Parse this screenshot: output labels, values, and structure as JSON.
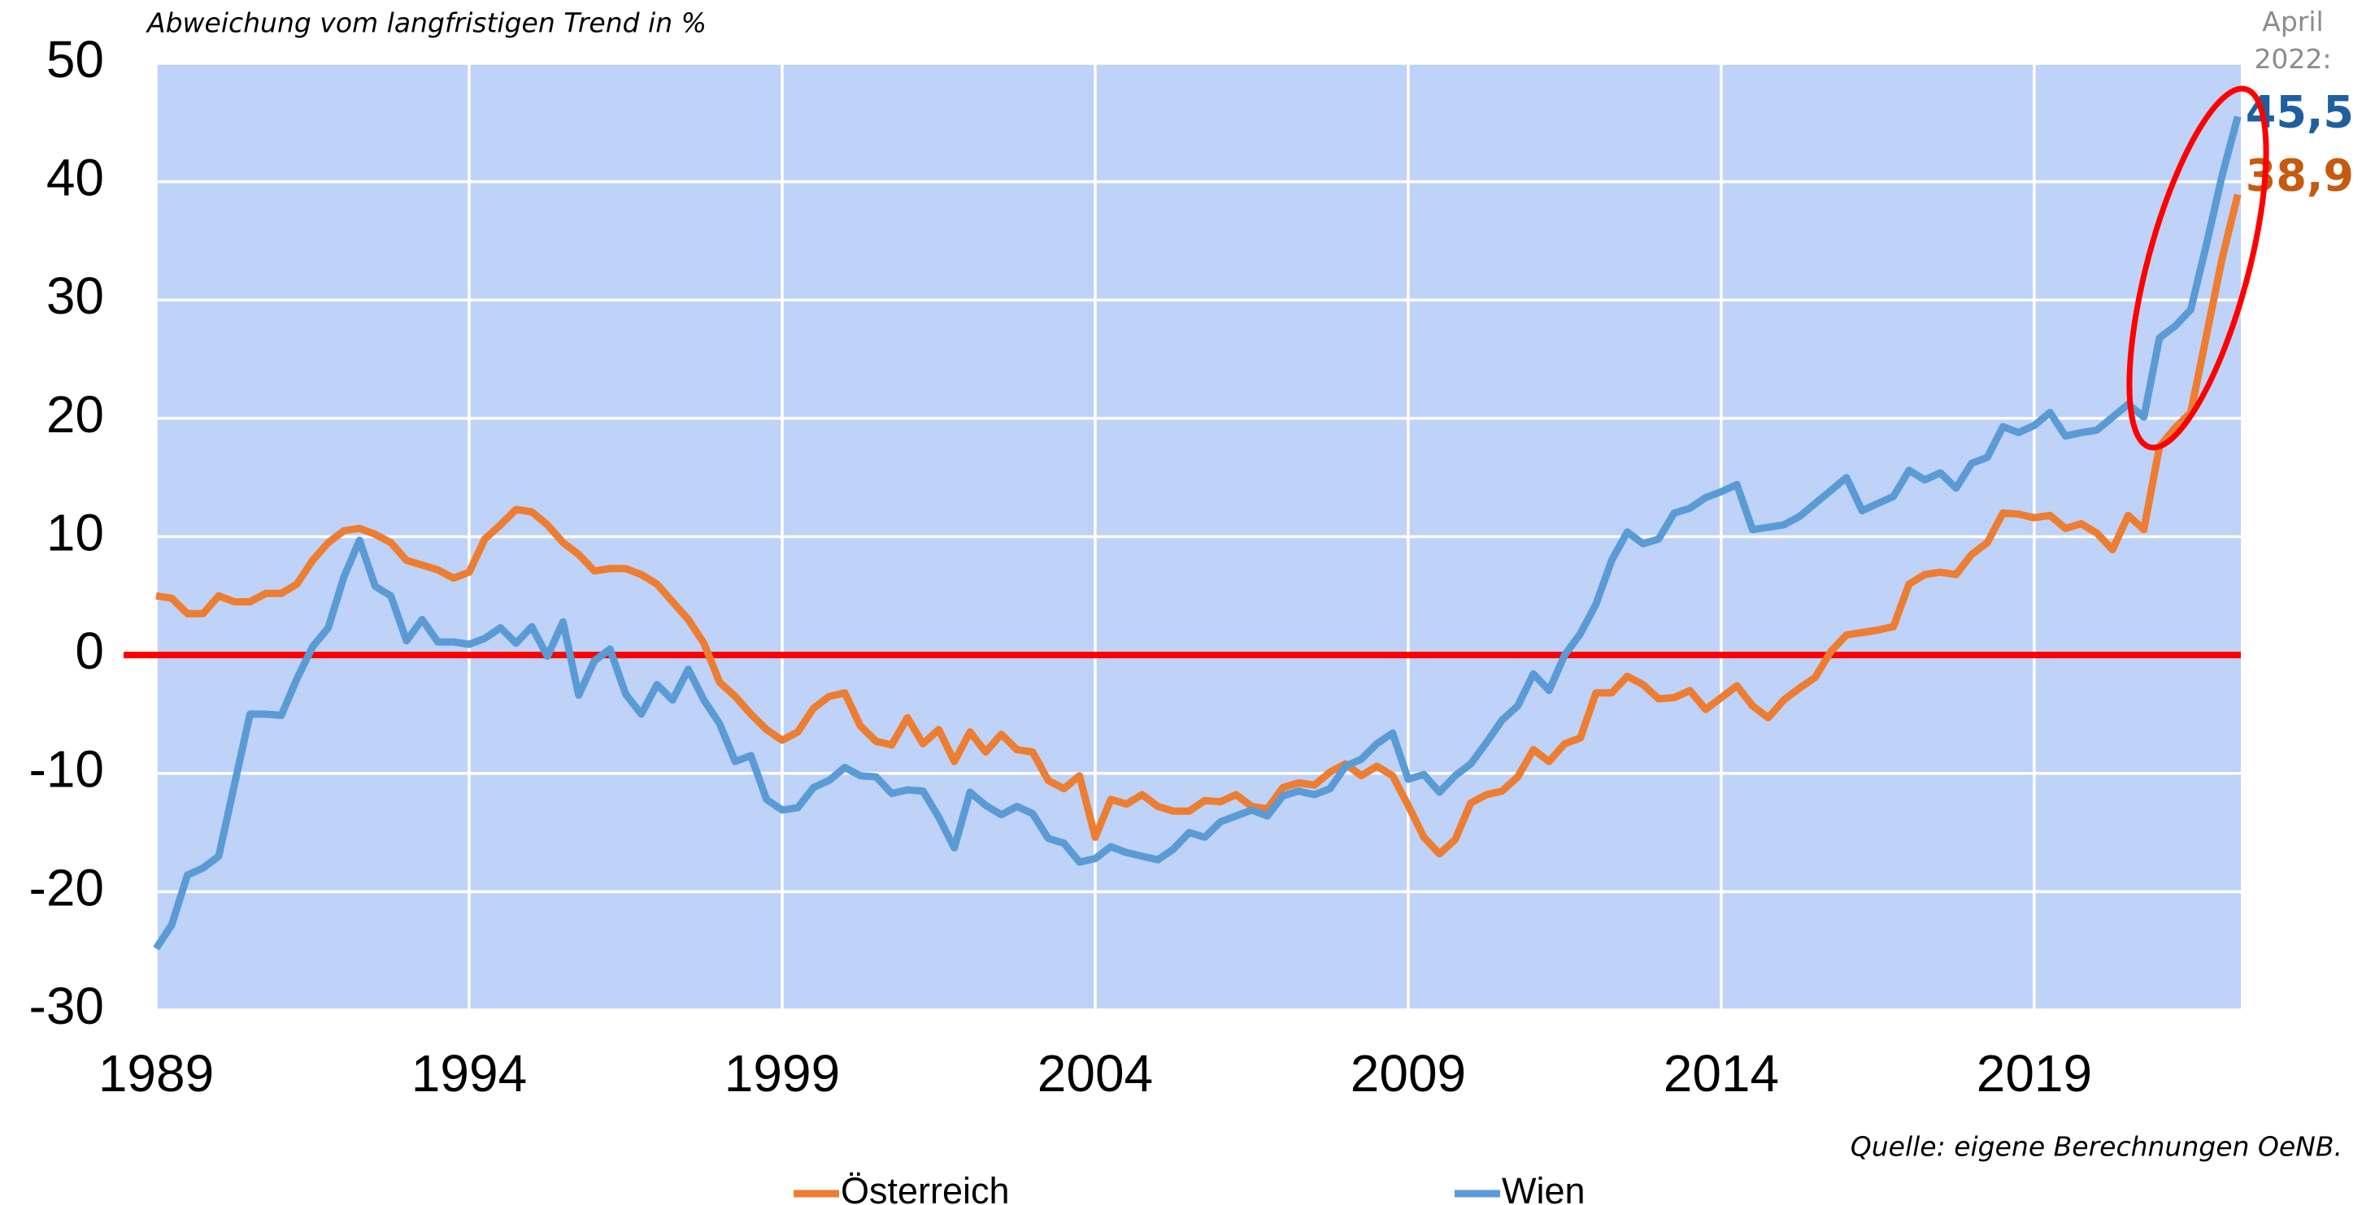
{
  "chart_data": {
    "type": "line",
    "subtitle": "Abweichung vom langfristigen Trend in %",
    "source": "Quelle: eigene Berechnungen OeNB.",
    "annotation": "April 2022:",
    "xlim": [
      1989,
      2022.3
    ],
    "xticks": [
      1989,
      1994,
      1999,
      2004,
      2009,
      2014,
      2019
    ],
    "ylim": [
      -30,
      50
    ],
    "yticks": [
      -30,
      -20,
      -10,
      0,
      10,
      20,
      30,
      40,
      50
    ],
    "grid": true,
    "plot_background": "#bfd2f7",
    "reference_line": {
      "value": 0,
      "color": "#ff0000"
    },
    "x": [
      1989,
      1989.25,
      1989.5,
      1989.75,
      1990,
      1990.25,
      1990.5,
      1990.75,
      1991,
      1991.25,
      1991.5,
      1991.75,
      1992,
      1992.25,
      1992.5,
      1992.75,
      1993,
      1993.25,
      1993.5,
      1993.75,
      1994,
      1994.25,
      1994.5,
      1994.75,
      1995,
      1995.25,
      1995.5,
      1995.75,
      1996,
      1996.25,
      1996.5,
      1996.75,
      1997,
      1997.25,
      1997.5,
      1997.75,
      1998,
      1998.25,
      1998.5,
      1998.75,
      1999,
      1999.25,
      1999.5,
      1999.75,
      2000,
      2000.25,
      2000.5,
      2000.75,
      2001,
      2001.25,
      2001.5,
      2001.75,
      2002,
      2002.25,
      2002.5,
      2002.75,
      2003,
      2003.25,
      2003.5,
      2003.75,
      2004,
      2004.25,
      2004.5,
      2004.75,
      2005,
      2005.25,
      2005.5,
      2005.75,
      2006,
      2006.25,
      2006.5,
      2006.75,
      2007,
      2007.25,
      2007.5,
      2007.75,
      2008,
      2008.25,
      2008.5,
      2008.75,
      2009,
      2009.25,
      2009.5,
      2009.75,
      2010,
      2010.25,
      2010.5,
      2010.75,
      2011,
      2011.25,
      2011.5,
      2011.75,
      2012,
      2012.25,
      2012.5,
      2012.75,
      2013,
      2013.25,
      2013.5,
      2013.75,
      2014,
      2014.25,
      2014.5,
      2014.75,
      2015,
      2015.25,
      2015.5,
      2015.75,
      2016,
      2016.25,
      2016.5,
      2016.75,
      2017,
      2017.25,
      2017.5,
      2017.75,
      2018,
      2018.25,
      2018.5,
      2018.75,
      2019,
      2019.25,
      2019.5,
      2019.75,
      2020,
      2020.25,
      2020.5,
      2020.75,
      2021,
      2021.25,
      2021.5,
      2021.75,
      2022,
      2022.25
    ],
    "series": [
      {
        "name": "Österreich",
        "color": "#ed7d31",
        "end_label": "38,9",
        "end_label_color": "#c55a11",
        "values": [
          5,
          4.8,
          3.5,
          3.5,
          5,
          4.5,
          4.5,
          5.2,
          5.2,
          6,
          8,
          9.5,
          10.5,
          10.7,
          10.2,
          9.5,
          8,
          7.6,
          7.2,
          6.5,
          7,
          9.8,
          11,
          12.3,
          12.1,
          11,
          9.5,
          8.5,
          7.1,
          7.3,
          7.3,
          6.8,
          6,
          4.5,
          3,
          1,
          -2.3,
          -3.5,
          -5,
          -6.3,
          -7.2,
          -6.5,
          -4.5,
          -3.5,
          -3.2,
          -6,
          -7.3,
          -7.6,
          -5.3,
          -7.5,
          -6.3,
          -9,
          -6.5,
          -8.2,
          -6.7,
          -8,
          -8.2,
          -10.6,
          -11.3,
          -10.2,
          -15.4,
          -12.2,
          -12.6,
          -11.8,
          -12.8,
          -13.2,
          -13.2,
          -12.3,
          -12.4,
          -11.8,
          -12.8,
          -13,
          -11.2,
          -10.8,
          -11,
          -9.9,
          -9.2,
          -10.2,
          -9.4,
          -10.2,
          -12.7,
          -15.4,
          -16.8,
          -15.6,
          -12.5,
          -11.8,
          -11.5,
          -10.3,
          -8,
          -9,
          -7.5,
          -7,
          -3.2,
          -3.2,
          -1.8,
          -2.5,
          -3.7,
          -3.6,
          -3,
          -4.6,
          -3.6,
          -2.6,
          -4.3,
          -5.3,
          -3.8,
          -2.8,
          -1.9,
          0.3,
          1.7,
          1.9,
          2.1,
          2.4,
          6,
          6.8,
          7,
          6.8,
          8.5,
          9.5,
          12,
          11.9,
          11.6,
          11.8,
          10.7,
          11.1,
          10.3,
          8.9,
          11.8,
          10.6,
          17.6,
          19.2,
          20.5,
          27,
          33.5,
          38.9
        ]
      },
      {
        "name": "Wien",
        "color": "#5b9bd5",
        "end_label": "45,5",
        "end_label_color": "#1f5f9f",
        "values": [
          -24.8,
          -22.8,
          -18.6,
          -18,
          -17,
          -11,
          -5,
          -5,
          -5.1,
          -2,
          0.7,
          2.3,
          6.6,
          9.7,
          5.8,
          5,
          1.2,
          3,
          1.1,
          1.1,
          0.9,
          1.4,
          2.3,
          1,
          2.4,
          -0.1,
          2.8,
          -3.4,
          -0.5,
          0.5,
          -3.3,
          -5,
          -2.5,
          -3.8,
          -1.2,
          -3.8,
          -5.8,
          -9,
          -8.5,
          -12.2,
          -13.1,
          -12.9,
          -11.2,
          -10.6,
          -9.5,
          -10.2,
          -10.3,
          -11.7,
          -11.4,
          -11.5,
          -13.7,
          -16.3,
          -11.6,
          -12.7,
          -13.5,
          -12.8,
          -13.4,
          -15.5,
          -15.9,
          -17.5,
          -17.2,
          -16.2,
          -16.7,
          -17,
          -17.3,
          -16.4,
          -15,
          -15.4,
          -14.1,
          -13.6,
          -13.1,
          -13.6,
          -11.9,
          -11.5,
          -11.8,
          -11.3,
          -9.4,
          -8.8,
          -7.5,
          -6.6,
          -10.5,
          -10.1,
          -11.6,
          -10.2,
          -9.2,
          -7.4,
          -5.5,
          -4.3,
          -1.6,
          -3,
          0,
          1.8,
          4.3,
          8,
          10.4,
          9.4,
          9.8,
          12,
          12.4,
          13.3,
          13.8,
          14.4,
          10.6,
          10.8,
          11,
          11.7,
          12.8,
          13.9,
          15,
          12.2,
          12.8,
          13.4,
          15.6,
          14.8,
          15.4,
          14.1,
          16.2,
          16.7,
          19.3,
          18.8,
          19.4,
          20.5,
          18.5,
          18.8,
          19,
          20.1,
          21.2,
          20.1,
          26.8,
          27.8,
          29.2,
          34.7,
          40.5,
          45.5
        ]
      }
    ]
  }
}
